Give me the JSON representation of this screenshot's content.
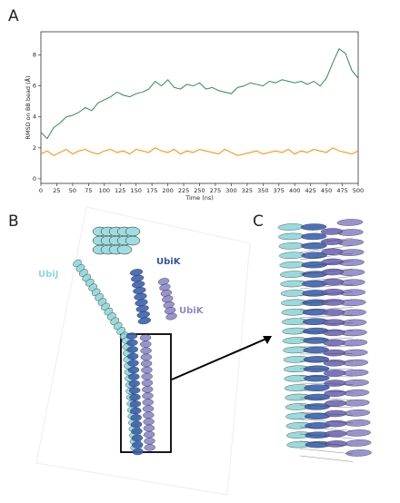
{
  "chart_data": {
    "type": "line",
    "x_label": "Time (ns)",
    "y_label": "RMSD on BB bead (Å)",
    "x": [
      0,
      10,
      20,
      30,
      40,
      50,
      60,
      70,
      80,
      90,
      100,
      110,
      120,
      130,
      140,
      150,
      160,
      170,
      180,
      190,
      200,
      210,
      220,
      230,
      240,
      250,
      260,
      270,
      280,
      290,
      300,
      310,
      320,
      330,
      340,
      350,
      360,
      370,
      380,
      390,
      400,
      410,
      420,
      430,
      440,
      450,
      460,
      470,
      480,
      490,
      500
    ],
    "series": [
      {
        "color": "#2e8b57",
        "values": [
          3.0,
          2.6,
          3.3,
          3.6,
          4.0,
          4.1,
          4.3,
          4.6,
          4.4,
          4.9,
          5.1,
          5.3,
          5.6,
          5.4,
          5.3,
          5.5,
          5.6,
          5.8,
          6.3,
          6.0,
          6.4,
          5.9,
          5.8,
          6.1,
          6.0,
          6.2,
          5.8,
          5.9,
          5.7,
          5.6,
          5.5,
          5.9,
          6.0,
          6.2,
          6.1,
          6.0,
          6.3,
          6.2,
          6.4,
          6.3,
          6.2,
          6.3,
          6.1,
          6.3,
          6.0,
          6.5,
          7.5,
          8.4,
          8.1,
          7.0,
          6.5
        ]
      },
      {
        "color": "#ff8c00",
        "values": [
          1.6,
          1.8,
          1.5,
          1.7,
          1.9,
          1.6,
          1.8,
          1.9,
          1.7,
          1.6,
          1.8,
          1.9,
          1.7,
          1.8,
          1.6,
          1.9,
          1.8,
          1.7,
          2.0,
          1.8,
          1.7,
          1.9,
          1.6,
          1.8,
          1.7,
          1.9,
          1.8,
          1.7,
          1.6,
          1.9,
          1.7,
          1.5,
          1.6,
          1.7,
          1.8,
          1.6,
          1.7,
          1.8,
          1.7,
          1.9,
          1.6,
          1.8,
          1.7,
          1.9,
          1.8,
          1.7,
          2.0,
          1.8,
          1.7,
          1.6,
          1.8
        ]
      }
    ],
    "xlim": [
      0,
      500
    ],
    "xticks": [
      0,
      25,
      50,
      75,
      100,
      125,
      150,
      175,
      200,
      225,
      250,
      275,
      300,
      325,
      350,
      375,
      400,
      425,
      450,
      475,
      500
    ],
    "ylim": [
      -0.3,
      9.5
    ],
    "yticks": [
      0,
      2,
      4,
      6,
      8
    ]
  },
  "panels": {
    "a": "A",
    "b": "B",
    "c": "C"
  },
  "structure_labels": {
    "ubij": "UbiJ",
    "ubik_top": "UbiK",
    "ubik_side": "UbiK"
  }
}
